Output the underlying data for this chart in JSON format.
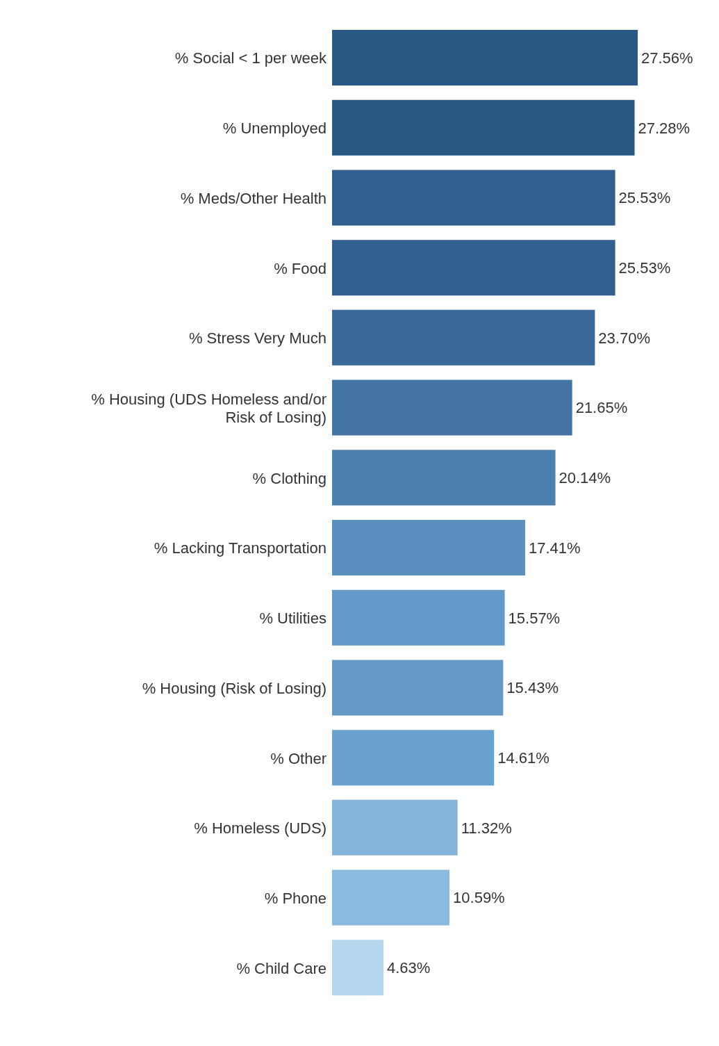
{
  "chart_data": {
    "type": "bar",
    "orientation": "horizontal",
    "categories": [
      "% Social < 1 per week",
      "% Unemployed",
      "% Meds/Other Health",
      "% Food",
      "% Stress Very Much",
      "% Housing (UDS Homeless and/or Risk of Losing)",
      "% Clothing",
      "% Lacking Transportation",
      "% Utilities",
      "% Housing (Risk of Losing)",
      "% Other",
      "% Homeless (UDS)",
      "% Phone",
      "% Child Care"
    ],
    "values": [
      27.56,
      27.28,
      25.53,
      25.53,
      23.7,
      21.65,
      20.14,
      17.41,
      15.57,
      15.43,
      14.61,
      11.32,
      10.59,
      4.63
    ],
    "value_labels": [
      "27.56%",
      "27.28%",
      "25.53%",
      "25.53%",
      "23.70%",
      "21.65%",
      "20.14%",
      "17.41%",
      "15.57%",
      "15.43%",
      "14.61%",
      "11.32%",
      "10.59%",
      "4.63%"
    ],
    "colors": [
      "#2a5783",
      "#2b5985",
      "#335f8e",
      "#335f8e",
      "#3b6a98",
      "#4474a3",
      "#4c80ae",
      "#5a8fbf",
      "#6399c8",
      "#6599c6",
      "#6aa2cf",
      "#85b4da",
      "#8bbade",
      "#b4d6ec"
    ],
    "tick_labels": "y"
  }
}
